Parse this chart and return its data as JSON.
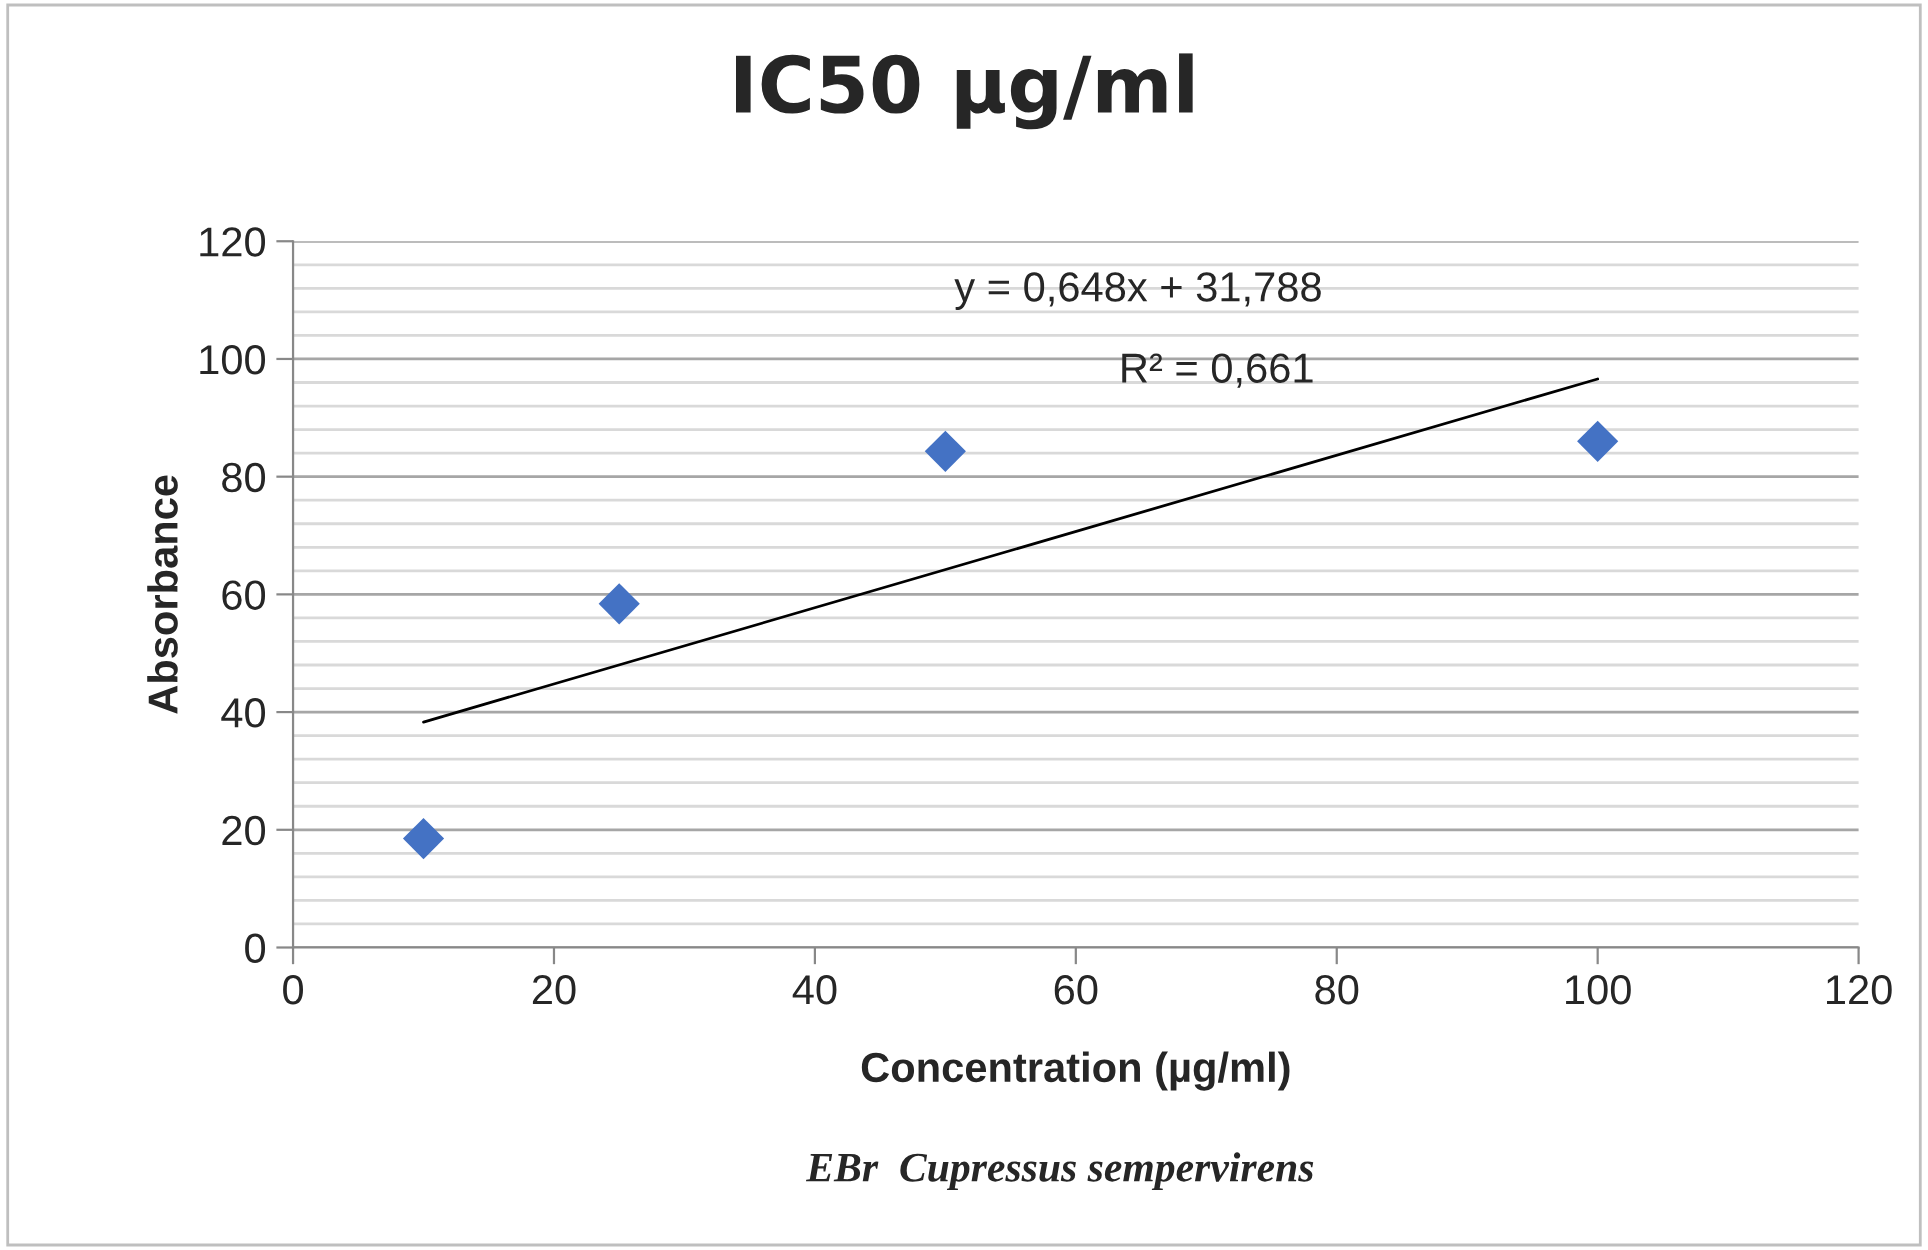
{
  "chart_data": {
    "type": "scatter",
    "title": "IC50 µg/ml",
    "xlabel": "Concentration (µg/ml)",
    "ylabel": "Absorbance",
    "series": [
      {
        "color": "#4472c4",
        "marker": "diamond",
        "x": [
          10,
          25,
          50,
          100
        ],
        "values": [
          18.5,
          58.4,
          84.3,
          86.0
        ]
      },
      {
        "type": "line",
        "color": "#000000",
        "marker": "none",
        "line_style": "solid",
        "x": [
          10,
          100
        ],
        "values": [
          38.3,
          96.6
        ]
      }
    ],
    "annotations": [
      "y = 0,648x + 31,788",
      "R² = 0,661",
      "EBr  Cupressus sempervirens"
    ],
    "xlim": [
      0,
      120
    ],
    "xticks": [
      0,
      20,
      40,
      60,
      80,
      100,
      120
    ],
    "ylim": [
      0,
      120
    ],
    "yticks": [
      0,
      20,
      40,
      60,
      80,
      100,
      120
    ],
    "grid": "y",
    "legend": false
  }
}
